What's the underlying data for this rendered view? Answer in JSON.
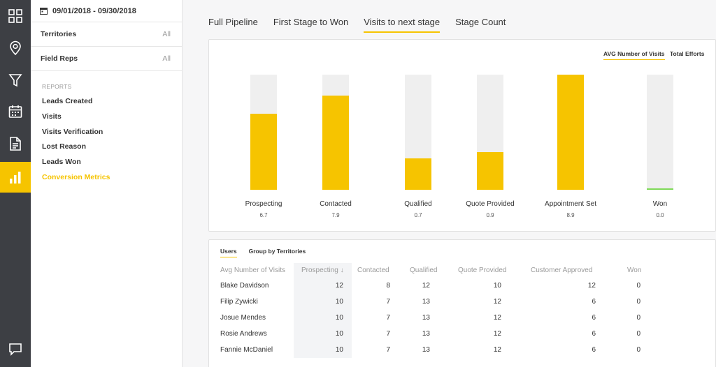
{
  "rail": {
    "items": [
      {
        "name": "dashboard-icon",
        "active": false
      },
      {
        "name": "map-pin-icon",
        "active": false
      },
      {
        "name": "filter-funnel-icon",
        "active": false
      },
      {
        "name": "calendar-icon",
        "active": false
      },
      {
        "name": "document-icon",
        "active": false
      },
      {
        "name": "bar-chart-icon",
        "active": true
      },
      {
        "name": "chat-icon",
        "active": false
      }
    ]
  },
  "panel": {
    "date_range": "09/01/2018 - 09/30/2018",
    "filters": [
      {
        "label": "Territories",
        "value": "All"
      },
      {
        "label": "Field Reps",
        "value": "All"
      }
    ],
    "reports_heading": "REPORTS",
    "reports": [
      {
        "label": "Leads Created",
        "active": false
      },
      {
        "label": "Visits",
        "active": false
      },
      {
        "label": "Visits Verification",
        "active": false
      },
      {
        "label": "Lost Reason",
        "active": false
      },
      {
        "label": "Leads Won",
        "active": false
      },
      {
        "label": "Conversion Metrics",
        "active": true
      }
    ]
  },
  "tabs": [
    {
      "label": "Full Pipeline",
      "active": false
    },
    {
      "label": "First Stage to Won",
      "active": false
    },
    {
      "label": "Visits to next stage",
      "active": true
    },
    {
      "label": "Stage Count",
      "active": false
    }
  ],
  "chart_toggles": {
    "avg_label": "AVG Number of Visits",
    "total_label": "Total Efforts"
  },
  "chart_data": {
    "type": "bar",
    "categories": [
      "Prospecting",
      "Contacted",
      "Qualified",
      "Quote Provided",
      "Appointment Set",
      "Won"
    ],
    "values": [
      6.7,
      7.9,
      0.7,
      0.9,
      8.9,
      0.0
    ],
    "value_labels": [
      "6.7",
      "7.9",
      "0.7",
      "0.9",
      "8.9",
      "0.0"
    ],
    "fill_fractions": [
      0.66,
      0.82,
      0.27,
      0.33,
      1.0,
      0.015
    ],
    "colors": {
      "fill": "#f6c400",
      "won": "#7ed957",
      "track": "#efefef"
    }
  },
  "table": {
    "subtabs": [
      {
        "label": "Users",
        "active": true
      },
      {
        "label": "Group by Territories",
        "active": false
      }
    ],
    "columns": [
      "Avg Number of Visits",
      "Prospecting ↓",
      "Contacted",
      "Qualified",
      "Quote Provided",
      "Customer Approved",
      "Won"
    ],
    "rows": [
      [
        "Blake Davidson",
        "12",
        "8",
        "12",
        "10",
        "12",
        "0"
      ],
      [
        "Filip Zywicki",
        "10",
        "7",
        "13",
        "12",
        "6",
        "0"
      ],
      [
        "Josue Mendes",
        "10",
        "7",
        "13",
        "12",
        "6",
        "0"
      ],
      [
        "Rosie Andrews",
        "10",
        "7",
        "13",
        "12",
        "6",
        "0"
      ],
      [
        "Fannie McDaniel",
        "10",
        "7",
        "13",
        "12",
        "6",
        "0"
      ]
    ]
  },
  "colors": {
    "accent": "#f6c400",
    "rail_bg": "#3d3f44"
  }
}
